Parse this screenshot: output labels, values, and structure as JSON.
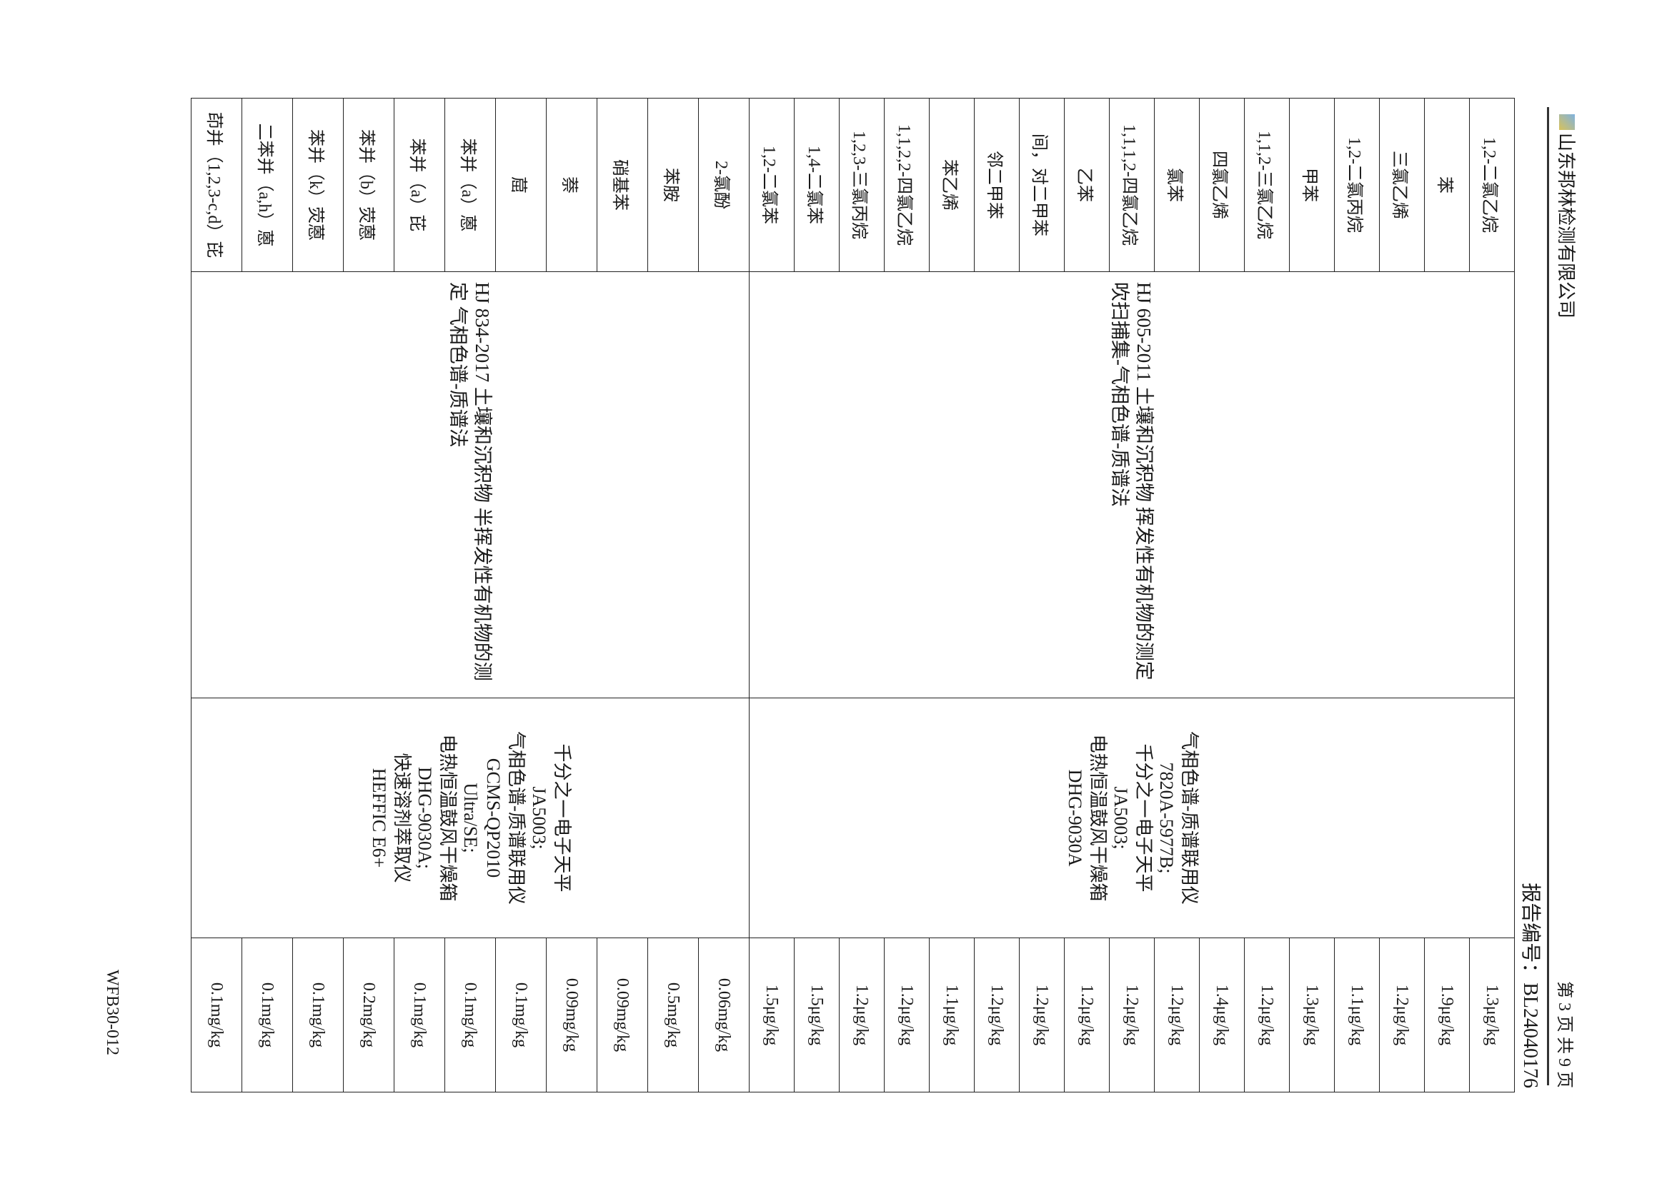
{
  "header": {
    "company": "山东邦林检测有限公司",
    "page_info": "第 3 页 共 9 页",
    "report_no": "报告编号：BL24040176"
  },
  "groups": [
    {
      "method": "HJ 605-2011 土壤和沉积物 挥发性有机物的测定 吹扫捕集-气相色谱-质谱法",
      "equipment": [
        "气相色谱-质谱联用仪",
        "7820A-5977B;",
        "千分之一电子天平",
        "JA5003;",
        "电热恒温鼓风干燥箱",
        "DHG-9030A"
      ],
      "rows": [
        {
          "item": "1,2-二氯乙烷",
          "limit": "1.3μg/kg"
        },
        {
          "item": "苯",
          "limit": "1.9μg/kg"
        },
        {
          "item": "三氯乙烯",
          "limit": "1.2μg/kg"
        },
        {
          "item": "1,2-二氯丙烷",
          "limit": "1.1μg/kg"
        },
        {
          "item": "甲苯",
          "limit": "1.3μg/kg"
        },
        {
          "item": "1,1,2-三氯乙烷",
          "limit": "1.2μg/kg"
        },
        {
          "item": "四氯乙烯",
          "limit": "1.4μg/kg"
        },
        {
          "item": "氯苯",
          "limit": "1.2μg/kg"
        },
        {
          "item": "1,1,1,2-四氯乙烷",
          "limit": "1.2μg/kg"
        },
        {
          "item": "乙苯",
          "limit": "1.2μg/kg"
        },
        {
          "item": "间，对二甲苯",
          "limit": "1.2μg/kg"
        },
        {
          "item": "邻二甲苯",
          "limit": "1.2μg/kg"
        },
        {
          "item": "苯乙烯",
          "limit": "1.1μg/kg"
        },
        {
          "item": "1,1,2,2-四氯乙烷",
          "limit": "1.2μg/kg"
        },
        {
          "item": "1,2,3-三氯丙烷",
          "limit": "1.2μg/kg"
        },
        {
          "item": "1,4-二氯苯",
          "limit": "1.5μg/kg"
        },
        {
          "item": "1,2-二氯苯",
          "limit": "1.5μg/kg"
        }
      ]
    },
    {
      "method": "HJ 834-2017 土壤和沉积物 半挥发性有机物的测定 气相色谱-质谱法",
      "equipment": [
        "千分之一电子天平",
        "JA5003;",
        "气相色谱-质谱联用仪",
        "GCMS-QP2010",
        "Ultra/SE;",
        "电热恒温鼓风干燥箱",
        "DHG-9030A;",
        "快速溶剂萃取仪",
        "HEFFIC E6+"
      ],
      "rows": [
        {
          "item": "2-氯酚",
          "limit": "0.06mg/kg"
        },
        {
          "item": "苯胺",
          "limit": "0.5mg/kg"
        },
        {
          "item": "硝基苯",
          "limit": "0.09mg/kg"
        },
        {
          "item": "萘",
          "limit": "0.09mg/kg"
        },
        {
          "item": "䓛",
          "limit": "0.1mg/kg"
        },
        {
          "item": "苯并（a）蒽",
          "limit": "0.1mg/kg"
        },
        {
          "item": "苯并（a）芘",
          "limit": "0.1mg/kg"
        },
        {
          "item": "苯并（b）荧蒽",
          "limit": "0.2mg/kg"
        },
        {
          "item": "苯并（k）荧蒽",
          "limit": "0.1mg/kg"
        },
        {
          "item": "二苯并（a,h）蒽",
          "limit": "0.1mg/kg"
        },
        {
          "item": "茚并（1,2,3-c,d）芘",
          "limit": "0.1mg/kg"
        }
      ]
    }
  ],
  "footer": {
    "form_code": "WFB30-012"
  }
}
